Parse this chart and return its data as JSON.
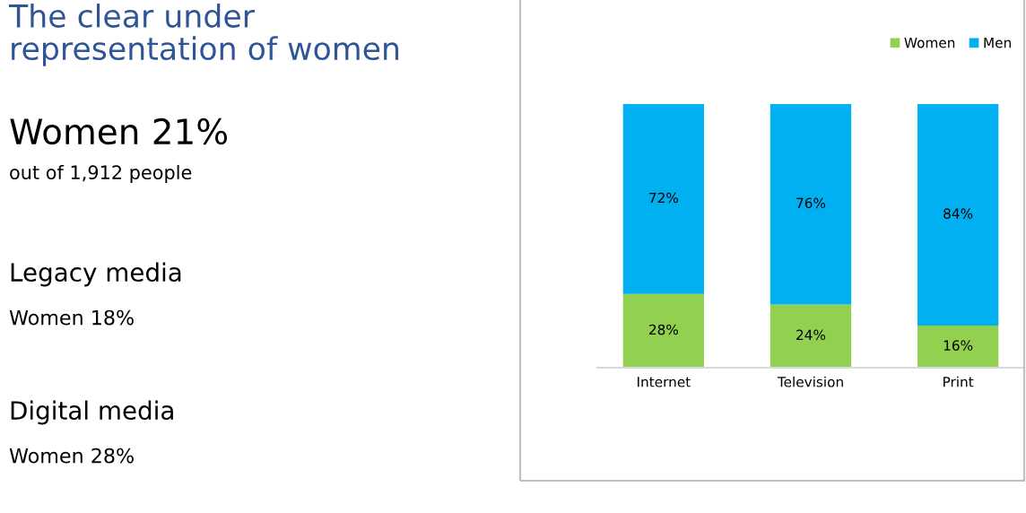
{
  "chart_data": {
    "type": "bar",
    "stacked": true,
    "title": "The clear under\nrepresentation of women",
    "annotations": [
      "Women 21%",
      "out of 1,912 people",
      "Legacy media",
      "Women 18%",
      "Digital media",
      "Women 28%"
    ],
    "categories": [
      "Internet",
      "Television",
      "Print"
    ],
    "relative": false,
    "series": [
      {
        "name": "Women",
        "color": "#92d050",
        "values": [
          28,
          24,
          16
        ],
        "value_labels": [
          "28%",
          "24%",
          "16%"
        ]
      },
      {
        "name": "Men",
        "color": "#00b0f0",
        "values": [
          72,
          76,
          84
        ],
        "value_labels": [
          "72%",
          "76%",
          "84%"
        ]
      }
    ],
    "ylim": [
      0,
      100
    ],
    "tick_labels": "x",
    "legend": "top right",
    "grid": false
  }
}
